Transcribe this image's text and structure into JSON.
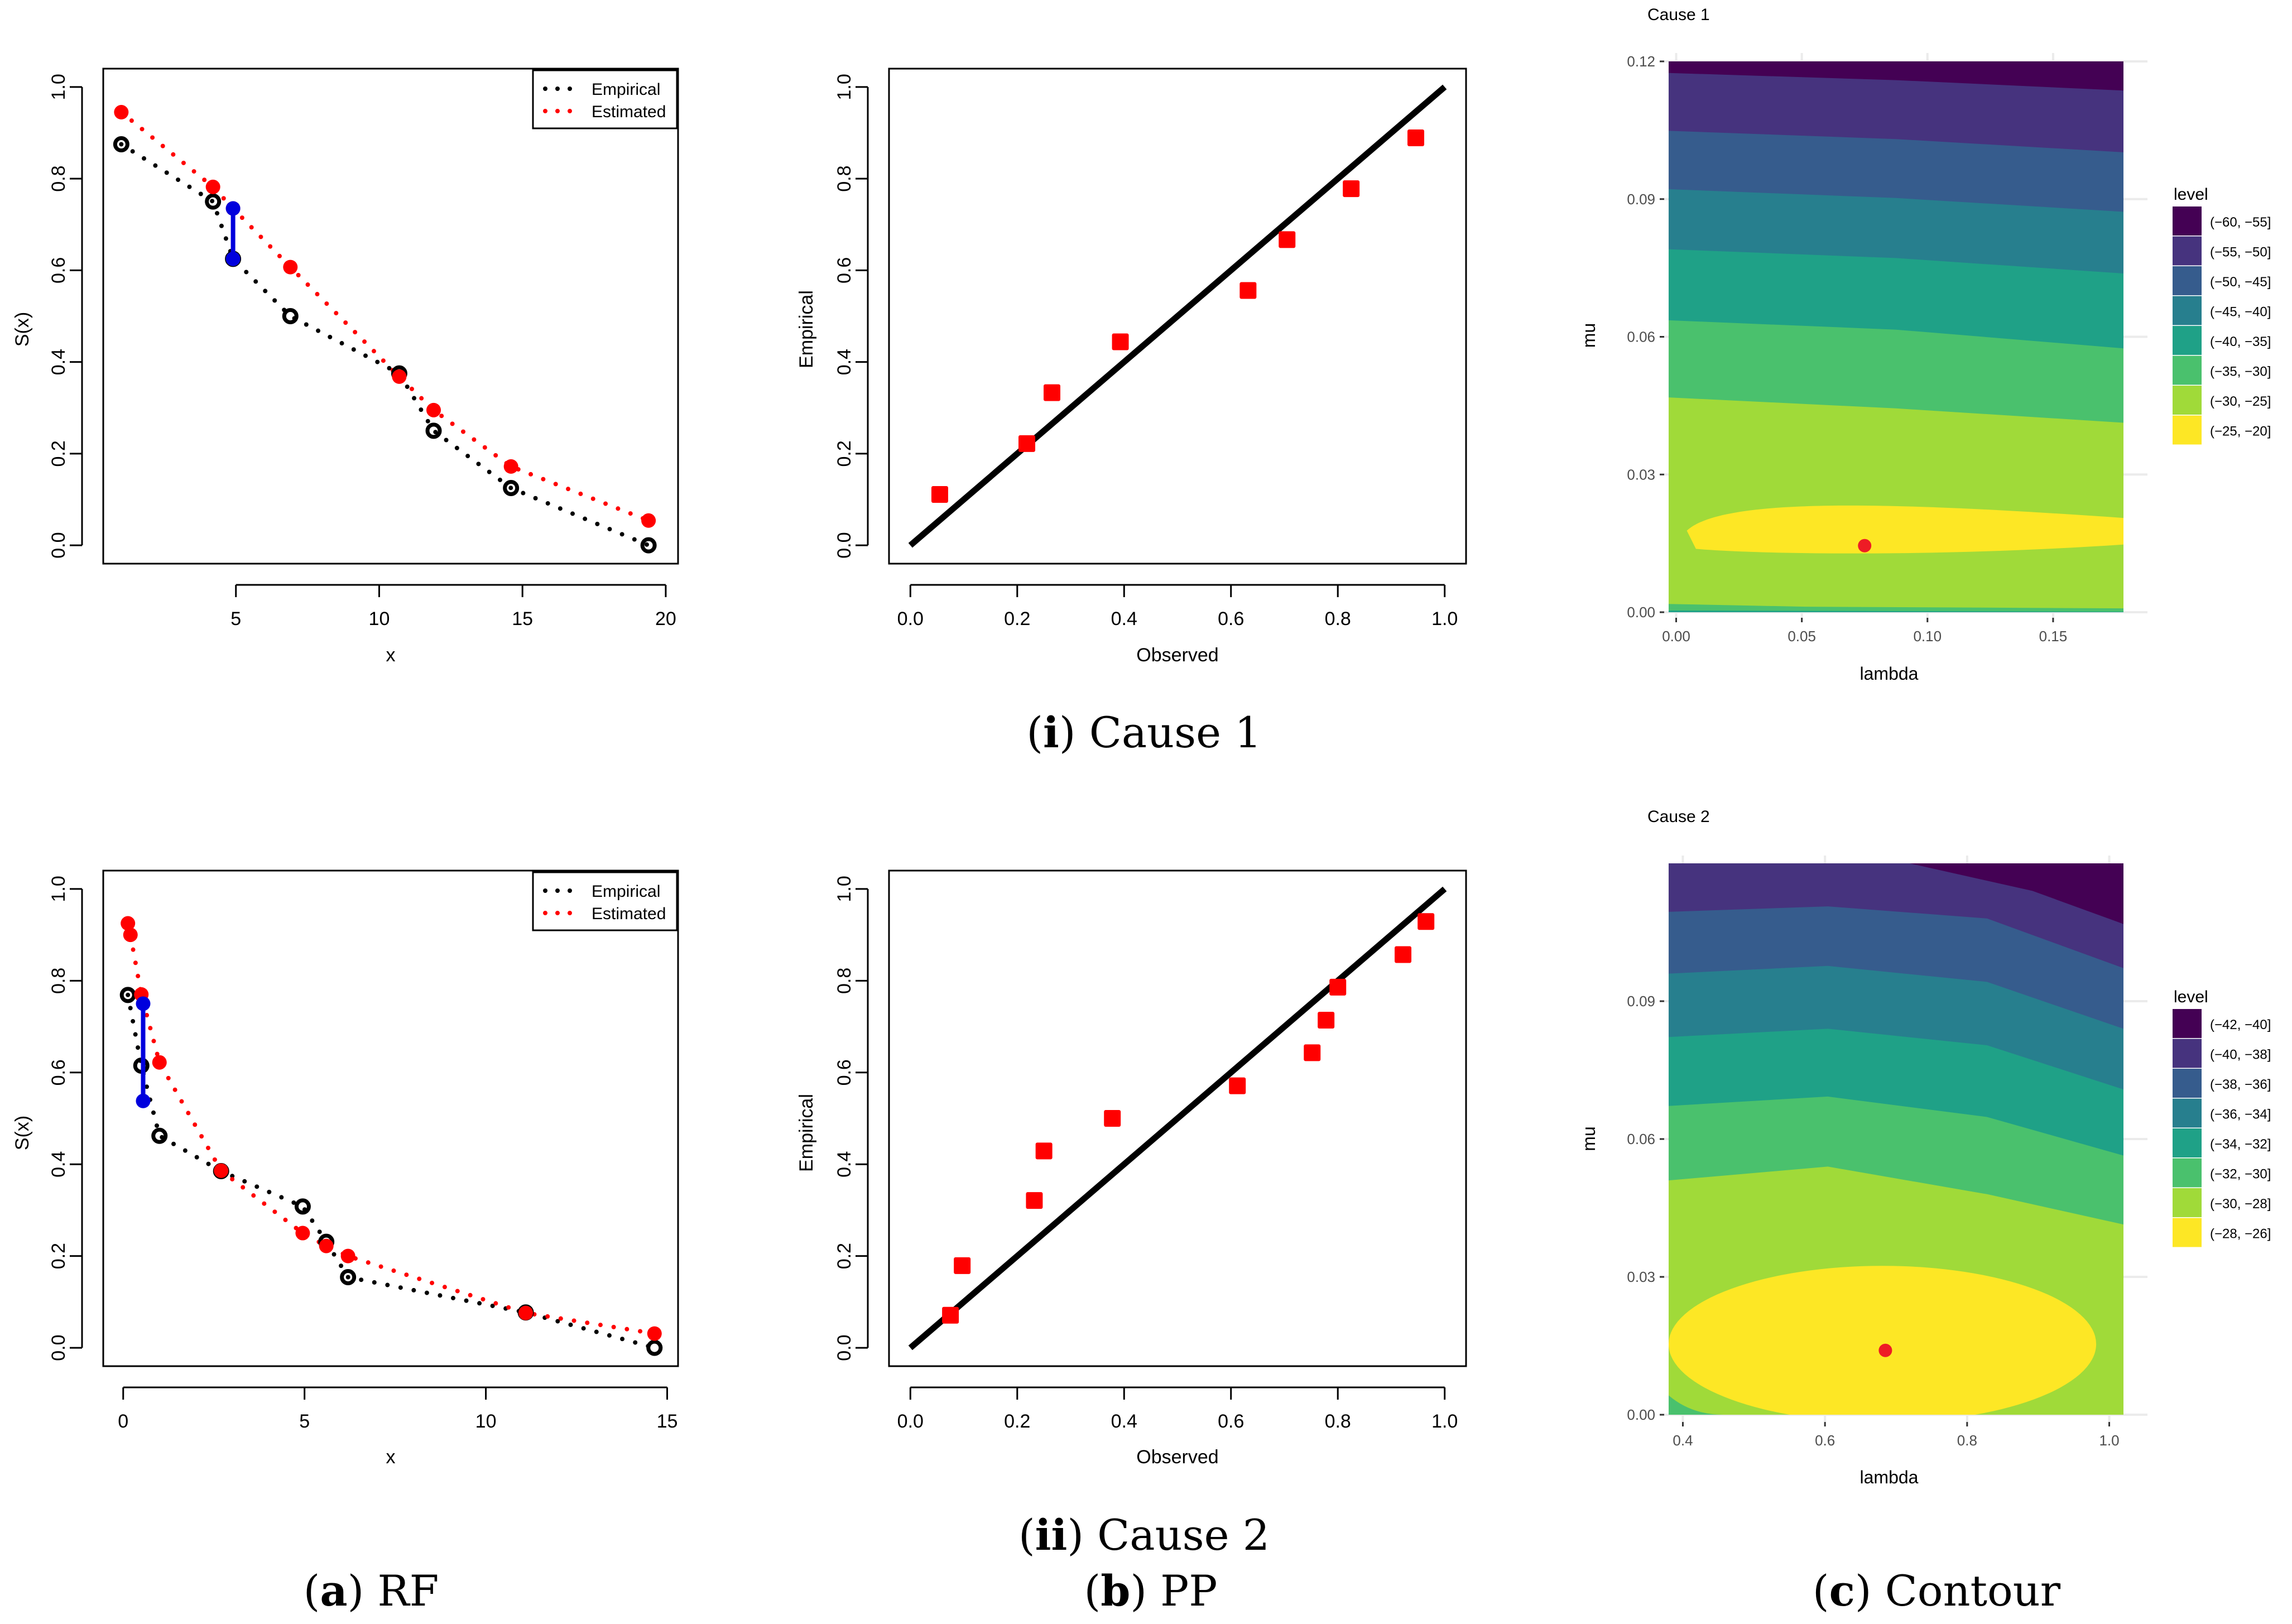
{
  "captions": {
    "row1": {
      "num": "i",
      "label": "Cause 1"
    },
    "row2": {
      "num": "ii",
      "label": "Cause 2"
    },
    "colA": {
      "letter": "a",
      "label": "RF"
    },
    "colB": {
      "letter": "b",
      "label": "PP"
    },
    "colC": {
      "letter": "c",
      "label": "Contour"
    }
  },
  "colors": {
    "empirical": "#000000",
    "estimated": "#ff0000",
    "gap": "#0000dd",
    "pp_points": "#ff0000",
    "contour_point": "#ee1c25"
  },
  "chart_data": [
    {
      "id": "rf1",
      "type": "scatter",
      "title": "",
      "xlabel": "x",
      "ylabel": "S(x)",
      "xlim": [
        0.37,
        20.43
      ],
      "ylim": [
        -0.04,
        1.04
      ],
      "xticks": [
        5,
        10,
        15,
        20
      ],
      "yticks": [
        0.0,
        0.2,
        0.4,
        0.6,
        0.8,
        1.0
      ],
      "legend": {
        "position": "top-right",
        "entries": [
          "Empirical",
          "Estimated"
        ]
      },
      "series": [
        {
          "name": "Empirical",
          "color": "#000000",
          "x": [
            1.0,
            4.2,
            4.9,
            6.9,
            10.7,
            11.9,
            14.6,
            19.4
          ],
          "y": [
            0.875,
            0.75,
            0.625,
            0.5,
            0.375,
            0.25,
            0.125,
            0.0
          ]
        },
        {
          "name": "Estimated",
          "color": "#ff0000",
          "x": [
            1.0,
            4.2,
            4.9,
            6.9,
            10.7,
            11.9,
            14.6,
            19.4
          ],
          "y": [
            0.945,
            0.782,
            0.735,
            0.607,
            0.368,
            0.295,
            0.172,
            0.054
          ]
        }
      ],
      "max_gap": {
        "x": 4.9,
        "y1": 0.625,
        "y2": 0.735
      }
    },
    {
      "id": "pp1",
      "type": "scatter",
      "title": "",
      "xlabel": "Observed",
      "ylabel": "Empirical",
      "xlim": [
        -0.04,
        1.04
      ],
      "ylim": [
        -0.04,
        1.04
      ],
      "xticks": [
        0.0,
        0.2,
        0.4,
        0.6,
        0.8,
        1.0
      ],
      "yticks": [
        0.0,
        0.2,
        0.4,
        0.6,
        0.8,
        1.0
      ],
      "reference_line": [
        [
          0,
          0
        ],
        [
          1,
          1
        ]
      ],
      "points": {
        "x": [
          0.055,
          0.218,
          0.265,
          0.393,
          0.632,
          0.705,
          0.825,
          0.946
        ],
        "y": [
          0.111,
          0.222,
          0.333,
          0.444,
          0.556,
          0.667,
          0.778,
          0.889
        ]
      }
    },
    {
      "id": "ct1",
      "type": "heatmap",
      "title": "Cause 1",
      "xlabel": "lambda",
      "ylabel": "mu",
      "xlim": [
        -0.003,
        0.178
      ],
      "ylim": [
        0,
        0.12
      ],
      "xticks": [
        0.0,
        0.05,
        0.1,
        0.15
      ],
      "xtick_labels": [
        "0.00",
        "0.05",
        "0.10",
        "0.15"
      ],
      "yticks": [
        0.0,
        0.03,
        0.06,
        0.09,
        0.12
      ],
      "ytick_labels": [
        "0.00",
        "0.03",
        "0.06",
        "0.09",
        "0.12"
      ],
      "legend_title": "level",
      "levels": [
        "(−60, −55]",
        "(−55, −50]",
        "(−50, −45]",
        "(−45, −40]",
        "(−40, −35]",
        "(−35, −30]",
        "(−30, −25]",
        "(−25, −20]"
      ],
      "level_colors": [
        "#440154",
        "#46337e",
        "#365c8d",
        "#277f8e",
        "#1fa187",
        "#4ac16d",
        "#a0da39",
        "#fde725"
      ],
      "optimum": {
        "lambda": 0.075,
        "mu": 0.0145
      }
    },
    {
      "id": "rf2",
      "type": "scatter",
      "title": "",
      "xlabel": "x",
      "ylabel": "S(x)",
      "xlim": [
        -0.55,
        15.3
      ],
      "ylim": [
        -0.04,
        1.04
      ],
      "xticks": [
        0,
        5,
        10,
        15
      ],
      "yticks": [
        0.0,
        0.2,
        0.4,
        0.6,
        0.8,
        1.0
      ],
      "legend": {
        "position": "top-right",
        "entries": [
          "Empirical",
          "Estimated"
        ]
      },
      "series": [
        {
          "name": "Empirical",
          "color": "#000000",
          "x": [
            0.13,
            0.5,
            1.0,
            2.7,
            4.95,
            5.6,
            6.2,
            11.1,
            14.65
          ],
          "y": [
            0.769,
            0.615,
            0.462,
            0.385,
            0.308,
            0.231,
            0.154,
            0.077,
            0.0
          ]
        },
        {
          "name": "Estimated",
          "color": "#ff0000",
          "x": [
            0.13,
            0.2,
            0.5,
            1.0,
            2.7,
            4.95,
            5.6,
            6.2,
            11.1,
            14.65
          ],
          "y": [
            0.925,
            0.9,
            0.77,
            0.622,
            0.386,
            0.25,
            0.222,
            0.2,
            0.076,
            0.031
          ]
        }
      ],
      "max_gap": {
        "x": 0.55,
        "y1": 0.538,
        "y2": 0.75
      }
    },
    {
      "id": "pp2",
      "type": "scatter",
      "title": "",
      "xlabel": "Observed",
      "ylabel": "Empirical",
      "xlim": [
        -0.04,
        1.04
      ],
      "ylim": [
        -0.04,
        1.04
      ],
      "xticks": [
        0.0,
        0.2,
        0.4,
        0.6,
        0.8,
        1.0
      ],
      "yticks": [
        0.0,
        0.2,
        0.4,
        0.6,
        0.8,
        1.0
      ],
      "reference_line": [
        [
          0,
          0
        ],
        [
          1,
          1
        ]
      ],
      "points": {
        "x": [
          0.075,
          0.097,
          0.232,
          0.25,
          0.378,
          0.612,
          0.752,
          0.778,
          0.8,
          0.922,
          0.965
        ],
        "y": [
          0.071,
          0.179,
          0.321,
          0.429,
          0.5,
          0.571,
          0.643,
          0.714,
          0.786,
          0.857,
          0.929
        ]
      }
    },
    {
      "id": "ct2",
      "type": "heatmap",
      "title": "Cause 2",
      "xlabel": "lambda",
      "ylabel": "mu",
      "xlim": [
        0.38,
        1.02
      ],
      "ylim": [
        0,
        0.12
      ],
      "xticks": [
        0.4,
        0.6,
        0.8,
        1.0
      ],
      "xtick_labels": [
        "0.4",
        "0.6",
        "0.8",
        "1.0"
      ],
      "yticks": [
        0.0,
        0.03,
        0.06,
        0.09
      ],
      "ytick_labels": [
        "0.00",
        "0.03",
        "0.06",
        "0.09"
      ],
      "legend_title": "level",
      "levels": [
        "(−42, −40]",
        "(−40, −38]",
        "(−38, −36]",
        "(−36, −34]",
        "(−34, −32]",
        "(−32, −30]",
        "(−30, −28]",
        "(−28, −26]"
      ],
      "level_colors": [
        "#440154",
        "#46337e",
        "#365c8d",
        "#277f8e",
        "#1fa187",
        "#4ac16d",
        "#a0da39",
        "#fde725"
      ],
      "optimum": {
        "lambda": 0.685,
        "mu": 0.014
      }
    }
  ]
}
